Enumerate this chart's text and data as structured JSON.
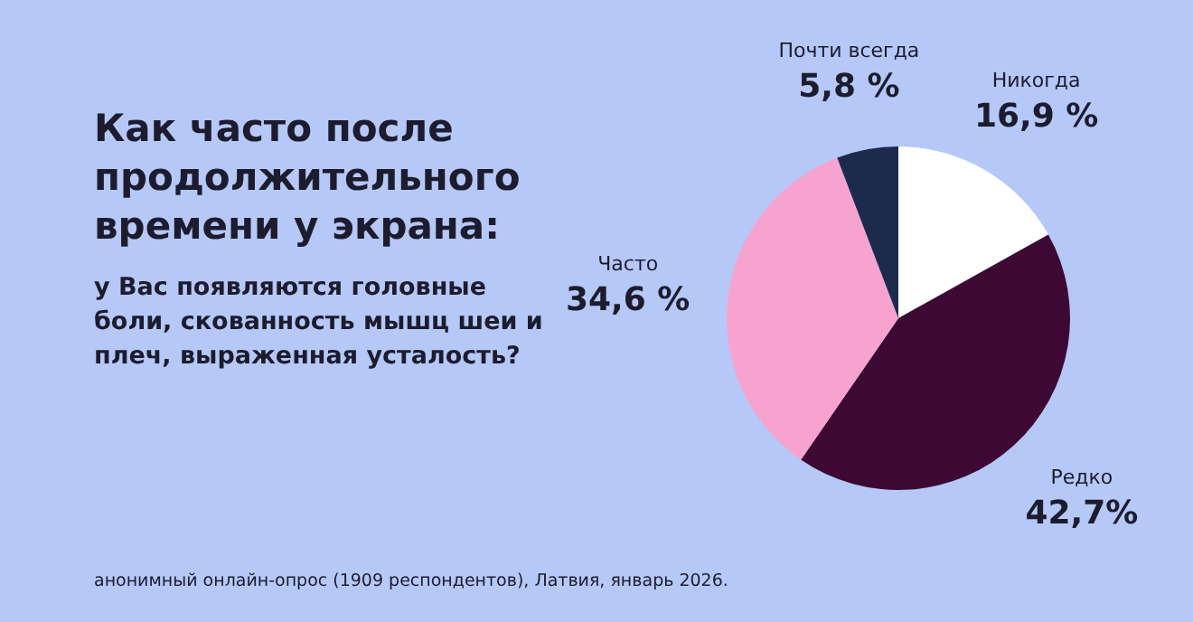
{
  "chart_data": {
    "type": "pie",
    "title": "Как часто после продолжительного времени у экрана:",
    "subtitle": "у Вас появляются головные боли, скованность мышц шеи и плеч, выраженная усталость?",
    "categories": [
      "Никогда",
      "Редко",
      "Часто",
      "Почти всегда"
    ],
    "values": [
      16.9,
      42.7,
      34.6,
      5.8
    ],
    "value_labels": [
      "16,9 %",
      "42,7%",
      "34,6 %",
      "5,8 %"
    ],
    "colors": [
      "#ffffff",
      "#3d0833",
      "#f7a3d0",
      "#1c2a4c"
    ],
    "annotations": [
      "анонимный онлайн-опрос (1909 респондентов), Латвия, январь 2026."
    ]
  }
}
